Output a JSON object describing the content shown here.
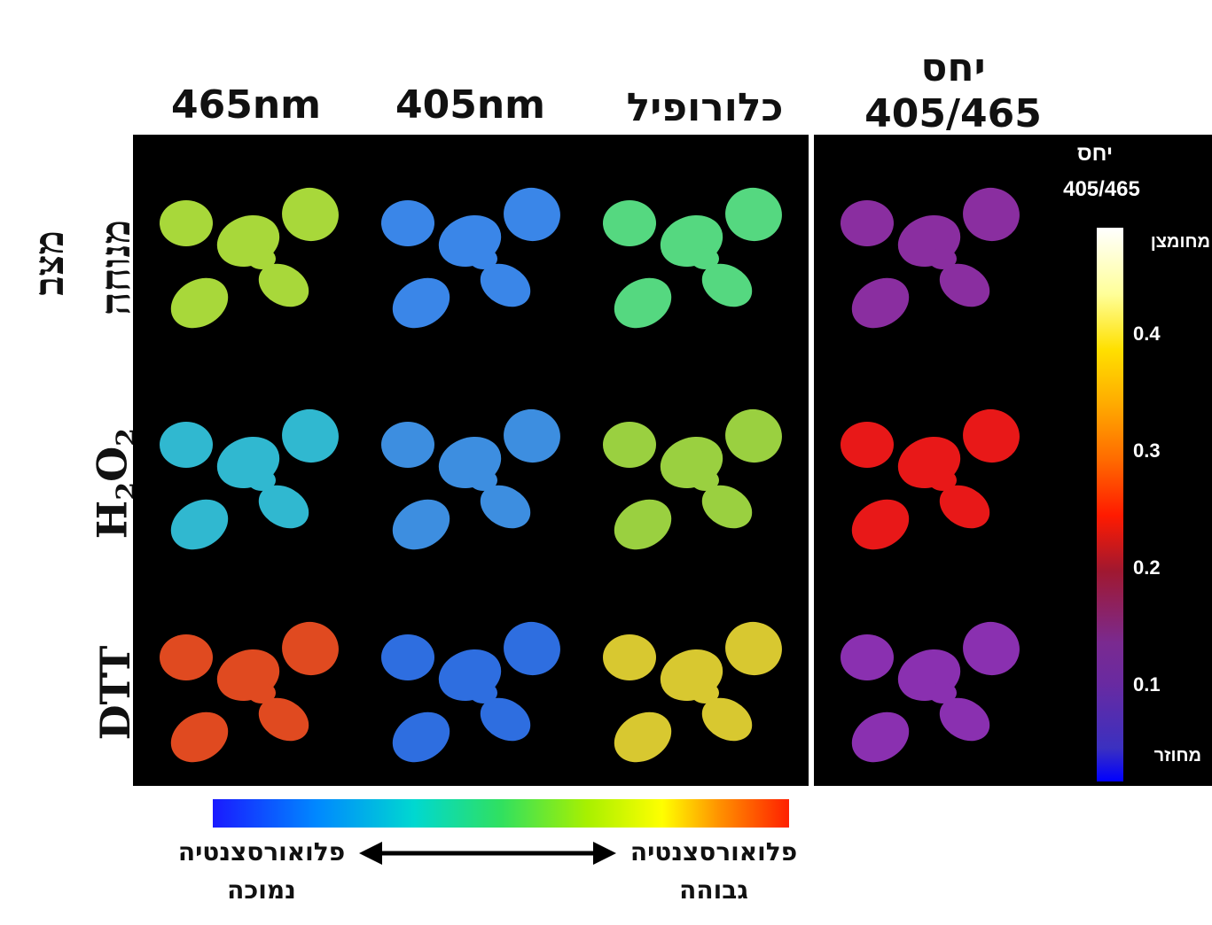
{
  "columns": {
    "c465": "465nm",
    "c405": "405nm",
    "chl": "כלורופיל",
    "ratio_line1": "יחס",
    "ratio_line2": "405/465"
  },
  "rows": {
    "title": "מצב",
    "rest": "מנוחה",
    "h2o2_main": "H",
    "h2o2_sub1": "2",
    "h2o2_o": "O",
    "h2o2_sub2": "2",
    "dtt": "DTT"
  },
  "colorbar": {
    "title_line1": "יחס",
    "title_line2": "405/465",
    "top_label": "מחומצן",
    "bottom_label": "מחוזר",
    "ticks": [
      "0.4",
      "0.3",
      "0.2",
      "0.1"
    ],
    "gradient": [
      "#0000ff",
      "#4b2bb0",
      "#7a2a8a",
      "#b01820",
      "#ff1a00",
      "#ff7a00",
      "#ffcc00",
      "#ffff99",
      "#ffffff"
    ]
  },
  "legend": {
    "low_line1": "פלואורסצנטיה",
    "low_line2": "נמוכה",
    "high_line1": "פלואורסצנטיה",
    "high_line2": "גבוהה",
    "gradient": [
      "#1a1aff",
      "#00a0ff",
      "#00e0c0",
      "#40e040",
      "#a0f000",
      "#ffff00",
      "#ff9000",
      "#ff2000"
    ]
  },
  "colors": {
    "rest_465": "#a8d83a",
    "rest_405": "#3a86e8",
    "rest_chl": "#55d880",
    "rest_ratio": "#8a2ea0",
    "h2o2_465": "#30b8d0",
    "h2o2_405": "#3d8ee0",
    "h2o2_chl": "#9ad040",
    "h2o2_ratio": "#e81818",
    "dtt_465": "#e04a20",
    "dtt_405": "#2e6ee0",
    "dtt_chl": "#d8c830",
    "dtt_ratio": "#8a30b0"
  }
}
